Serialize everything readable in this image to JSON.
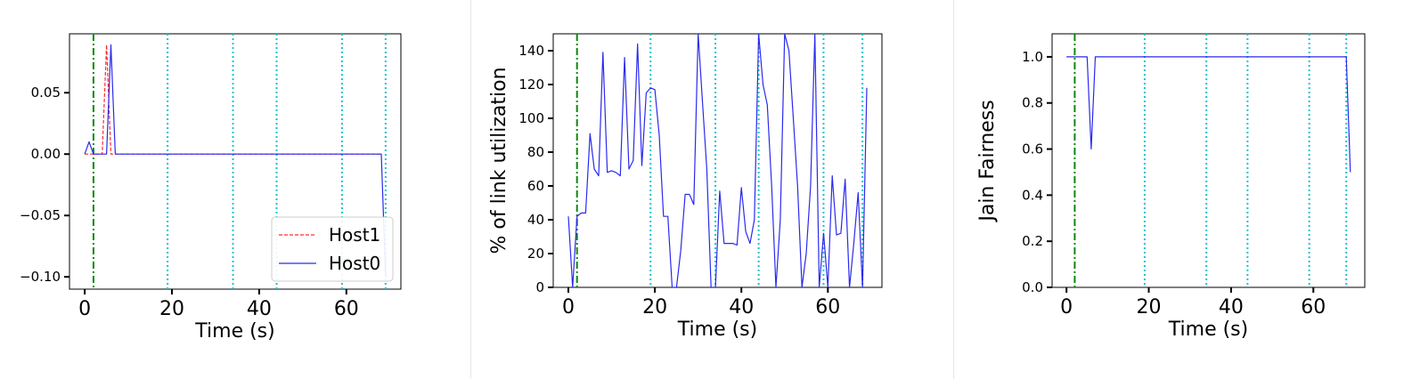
{
  "charts": [
    {
      "type": "line",
      "xlabel": "Time (s)",
      "ylabel": "",
      "xlim": [
        -3.5,
        72.5
      ],
      "ylim": [
        -0.11,
        0.098
      ],
      "xticks": [
        0,
        20,
        40,
        60
      ],
      "yticks": [
        -0.1,
        -0.05,
        0.0,
        0.05
      ],
      "ytick_labels": [
        "−0.10",
        "−0.05",
        "0.00",
        "0.05"
      ],
      "green_marker": 2,
      "cyan_markers": [
        19,
        34,
        44,
        59,
        69
      ],
      "legend": {
        "placement": "lower-right"
      },
      "series": [
        {
          "name": "Host1",
          "color": "#ff2a2a",
          "style": "dashed",
          "x": [
            0,
            1,
            2,
            3,
            4,
            5,
            6,
            7,
            10,
            20,
            30,
            40,
            50,
            60,
            68
          ],
          "y": [
            0,
            0,
            0,
            0,
            0,
            0.089,
            0,
            0,
            0,
            0,
            0,
            0,
            0,
            0,
            0
          ]
        },
        {
          "name": "Host0",
          "color": "#2a2aee",
          "style": "solid",
          "x": [
            0,
            1,
            2,
            3,
            4,
            5,
            6,
            7,
            10,
            20,
            30,
            40,
            50,
            60,
            68,
            69
          ],
          "y": [
            0,
            0.01,
            0,
            0,
            0,
            0,
            0.089,
            0,
            0,
            0,
            0,
            0,
            0,
            0,
            0,
            -0.1
          ]
        }
      ]
    },
    {
      "type": "line",
      "xlabel": "Time (s)",
      "ylabel": "% of link utilization",
      "xlim": [
        -3.5,
        72.5
      ],
      "ylim": [
        0,
        150
      ],
      "xticks": [
        0,
        20,
        40,
        60
      ],
      "yticks": [
        0,
        20,
        40,
        60,
        80,
        100,
        120,
        140
      ],
      "ytick_labels": [
        "0",
        "20",
        "40",
        "60",
        "80",
        "100",
        "120",
        "140"
      ],
      "green_marker": 2,
      "cyan_markers": [
        19,
        34,
        44,
        59,
        68
      ],
      "series": [
        {
          "color": "#2a2aee",
          "style": "solid",
          "x": [
            0,
            1,
            2,
            3,
            4,
            5,
            6,
            7,
            8,
            9,
            10,
            11,
            12,
            13,
            14,
            15,
            16,
            17,
            18,
            19,
            20,
            21,
            22,
            23,
            24,
            25,
            26,
            27,
            28,
            29,
            30,
            31,
            32,
            33,
            34,
            35,
            36,
            37,
            38,
            39,
            40,
            41,
            42,
            43,
            44,
            45,
            46,
            47,
            48,
            49,
            50,
            51,
            52,
            53,
            54,
            55,
            56,
            57,
            58,
            59,
            60,
            61,
            62,
            63,
            64,
            65,
            66,
            67,
            68,
            69
          ],
          "y": [
            42,
            0,
            42,
            44,
            44,
            91,
            70,
            66,
            139,
            68,
            69,
            68,
            66,
            136,
            70,
            75,
            144,
            72,
            115,
            118,
            117,
            90,
            42,
            42,
            0,
            0,
            22,
            55,
            55,
            49,
            150,
            110,
            70,
            0,
            0,
            57,
            26,
            26,
            26,
            25,
            59,
            33,
            26,
            40,
            150,
            120,
            108,
            60,
            0,
            40,
            150,
            140,
            100,
            60,
            0,
            20,
            60,
            150,
            0,
            32,
            0,
            66,
            31,
            32,
            64,
            0,
            26,
            56,
            0,
            118
          ]
        }
      ]
    },
    {
      "type": "line",
      "xlabel": "Time (s)",
      "ylabel": "Jain Fairness",
      "xlim": [
        -3.5,
        72.5
      ],
      "ylim": [
        0,
        1.1
      ],
      "xticks": [
        0,
        20,
        40,
        60
      ],
      "yticks": [
        0,
        0.2,
        0.4,
        0.6,
        0.8,
        1.0
      ],
      "ytick_labels": [
        "0.0",
        "0.2",
        "0.4",
        "0.6",
        "0.8",
        "1.0"
      ],
      "green_marker": 2,
      "cyan_markers": [
        19,
        34,
        44,
        59,
        68
      ],
      "series": [
        {
          "color": "#2a2aee",
          "style": "solid",
          "x": [
            0,
            5,
            6,
            7,
            20,
            40,
            60,
            68,
            69
          ],
          "y": [
            1,
            1,
            0.6,
            1,
            1,
            1,
            1,
            1,
            0.5
          ]
        }
      ]
    }
  ]
}
